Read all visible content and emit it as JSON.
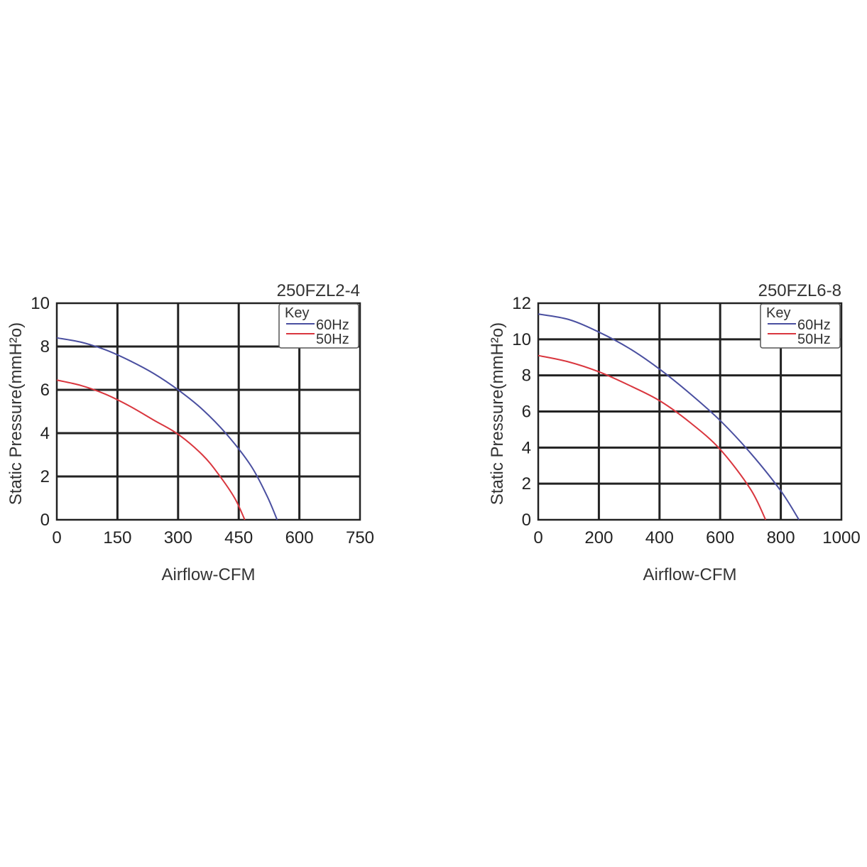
{
  "chart_data": [
    {
      "type": "line",
      "title": "250FZL2-4",
      "xlabel": "Airflow-CFM",
      "ylabel": "Static Pressure(mmH²o)",
      "xlim": [
        0,
        750
      ],
      "ylim": [
        0,
        10
      ],
      "xticks": [
        "0",
        "150",
        "300",
        "450",
        "600",
        "750"
      ],
      "yticks": [
        "0",
        "2",
        "4",
        "6",
        "8",
        "10"
      ],
      "legend_title": "Key",
      "legend_position": "top-right",
      "grid": true,
      "series": [
        {
          "name": "60Hz",
          "color": "#4a4fa0",
          "x": [
            0,
            60,
            120,
            180,
            240,
            300,
            360,
            420,
            480,
            520,
            545
          ],
          "y": [
            8.4,
            8.2,
            7.85,
            7.35,
            6.75,
            6.0,
            5.1,
            3.95,
            2.5,
            1.1,
            0
          ]
        },
        {
          "name": "50Hz",
          "color": "#d9363e",
          "x": [
            0,
            60,
            120,
            180,
            240,
            300,
            360,
            400,
            440,
            465
          ],
          "y": [
            6.45,
            6.2,
            5.8,
            5.25,
            4.6,
            3.95,
            3.0,
            2.1,
            1.0,
            0
          ]
        }
      ]
    },
    {
      "type": "line",
      "title": "250FZL6-8",
      "xlabel": "Airflow-CFM",
      "ylabel": "Static Pressure(mmH²o)",
      "xlim": [
        0,
        1000
      ],
      "ylim": [
        0,
        12
      ],
      "xticks": [
        "0",
        "200",
        "400",
        "600",
        "800",
        "1000"
      ],
      "yticks": [
        "0",
        "2",
        "4",
        "6",
        "8",
        "10",
        "12"
      ],
      "legend_title": "Key",
      "legend_position": "top-right",
      "grid": true,
      "series": [
        {
          "name": "60Hz",
          "color": "#4a4fa0",
          "x": [
            0,
            100,
            200,
            300,
            400,
            500,
            600,
            700,
            800,
            860
          ],
          "y": [
            11.4,
            11.1,
            10.4,
            9.5,
            8.35,
            7.0,
            5.5,
            3.7,
            1.6,
            0
          ]
        },
        {
          "name": "50Hz",
          "color": "#d9363e",
          "x": [
            0,
            100,
            200,
            300,
            400,
            500,
            600,
            700,
            750
          ],
          "y": [
            9.1,
            8.75,
            8.2,
            7.45,
            6.6,
            5.4,
            3.9,
            1.7,
            0
          ]
        }
      ]
    }
  ]
}
